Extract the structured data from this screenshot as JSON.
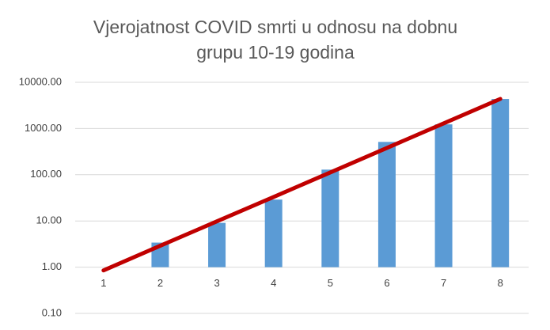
{
  "chart_data": {
    "type": "bar",
    "title": [
      "Vjerojatnost COVID smrti u  odnosu na dobnu",
      "grupu 10-19 godina"
    ],
    "categories": [
      "1",
      "2",
      "3",
      "4",
      "5",
      "6",
      "7",
      "8"
    ],
    "values": [
      1,
      3.4,
      9.1,
      29,
      129,
      513,
      1230,
      4360
    ],
    "color": "#5b9bd5",
    "trendline": {
      "color": "#c00000",
      "values": [
        0.85,
        2.9,
        9.8,
        33,
        112,
        380,
        1290,
        4370
      ]
    },
    "log_scale": true,
    "ylim": [
      0.1,
      10000
    ],
    "yticks": [
      {
        "value": 0.1,
        "label": "0.10"
      },
      {
        "value": 1,
        "label": "1.00"
      },
      {
        "value": 10,
        "label": "10.00"
      },
      {
        "value": 100,
        "label": "100.00"
      },
      {
        "value": 1000,
        "label": "1000.00"
      },
      {
        "value": 10000,
        "label": "10000.00"
      }
    ],
    "grid": true
  }
}
